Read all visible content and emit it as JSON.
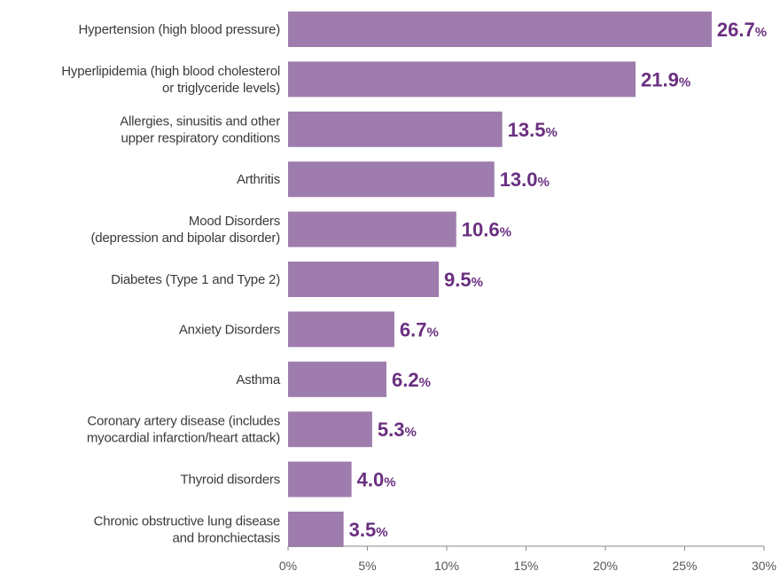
{
  "chart_data": {
    "type": "bar",
    "orientation": "horizontal",
    "categories": [
      [
        "Hypertension (high blood pressure)"
      ],
      [
        "Hyperlipidemia (high blood cholesterol",
        "or triglyceride levels)"
      ],
      [
        "Allergies, sinusitis and other",
        "upper respiratory conditions"
      ],
      [
        "Arthritis"
      ],
      [
        "Mood Disorders",
        "(depression and bipolar disorder)"
      ],
      [
        "Diabetes (Type 1 and Type 2)"
      ],
      [
        "Anxiety Disorders"
      ],
      [
        "Asthma"
      ],
      [
        "Coronary artery disease (includes",
        "myocardial infarction/heart attack)"
      ],
      [
        "Thyroid disorders"
      ],
      [
        "Chronic obstructive lung disease",
        "and bronchiectasis"
      ]
    ],
    "values": [
      26.7,
      21.9,
      13.5,
      13.0,
      10.6,
      9.5,
      6.7,
      6.2,
      5.3,
      4.0,
      3.5
    ],
    "value_labels": [
      "26.7",
      "21.9",
      "13.5",
      "13.0",
      "10.6",
      "9.5",
      "6.7",
      "6.2",
      "5.3",
      "4.0",
      "3.5"
    ],
    "value_suffix": "%",
    "xlim": [
      0,
      30
    ],
    "xticks": [
      0,
      5,
      10,
      15,
      20,
      25,
      30
    ],
    "xtick_labels": [
      "0%",
      "5%",
      "10%",
      "15%",
      "20%",
      "25%",
      "30%"
    ],
    "title": "",
    "xlabel": "",
    "ylabel": "",
    "grid": false,
    "bar_color": "#9e7cad",
    "label_color": "#6a2f80"
  }
}
